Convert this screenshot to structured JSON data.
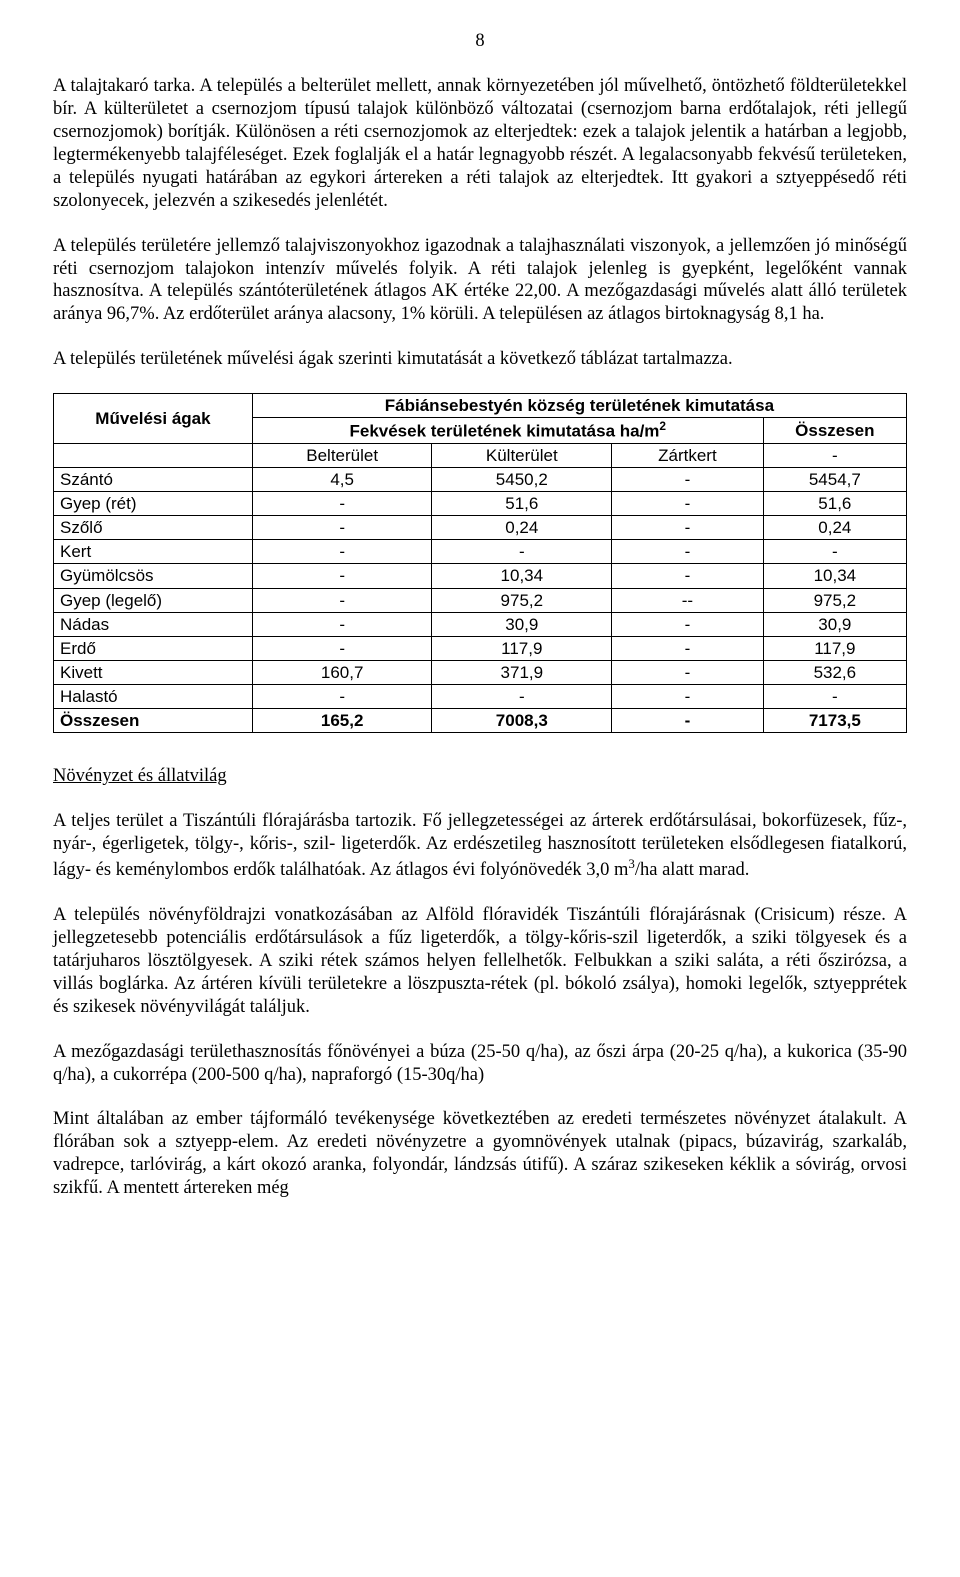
{
  "page_number": "8",
  "para1": "A talajtakaró tarka. A település a belterület mellett, annak környezetében jól művelhető, öntözhető földterületekkel bír. A külterületet a csernozjom típusú talajok különböző változatai (csernozjom barna erdőtalajok, réti jellegű csernozjomok) borítják. Különösen a réti csernozjomok az elterjedtek: ezek a talajok jelentik a határban a legjobb, legtermékenyebb talajféleséget. Ezek foglalják el a határ legnagyobb részét. A legalacsonyabb fekvésű területeken, a település nyugati határában az egykori ártereken a réti talajok az elterjedtek. Itt gyakori a sztyeppésedő réti szolonyecek, jelezvén a szikesedés jelenlétét.",
  "para2": "A település területére jellemző talajviszonyokhoz igazodnak a talajhasználati viszonyok, a jellemzően jó minőségű réti csernozjom talajokon intenzív művelés folyik. A réti talajok jelenleg is gyepként, legelőként vannak hasznosítva. A település szántóterületének átlagos AK értéke 22,00. A mezőgazdasági művelés alatt álló területek aránya 96,7%. Az erdőterület aránya alacsony, 1% körüli. A településen az átlagos birtoknagyság 8,1 ha.",
  "para3": "A település területének művelési ágak szerinti kimutatását a következő táblázat tartalmazza.",
  "table": {
    "title": "Fábiánsebestyén község területének kimutatása",
    "col_group": "Fekvések területének kimutatása ha/m",
    "col_group_sup": "2",
    "col0": "Művelési ágak",
    "col_total": "Összesen",
    "sub1": "Belterület",
    "sub2": "Külterület",
    "sub3": "Zártkert",
    "sub4": "-",
    "rows": [
      {
        "label": "Szántó",
        "c1": "4,5",
        "c2": "5450,2",
        "c3": "-",
        "c4": "5454,7"
      },
      {
        "label": "Gyep (rét)",
        "c1": "-",
        "c2": "51,6",
        "c3": "-",
        "c4": "51,6"
      },
      {
        "label": "Szőlő",
        "c1": "-",
        "c2": "0,24",
        "c3": "-",
        "c4": "0,24"
      },
      {
        "label": "Kert",
        "c1": "-",
        "c2": "-",
        "c3": "-",
        "c4": "-"
      },
      {
        "label": "Gyümölcsös",
        "c1": "-",
        "c2": "10,34",
        "c3": "-",
        "c4": "10,34"
      },
      {
        "label": "Gyep (legelő)",
        "c1": "-",
        "c2": "975,2",
        "c3": "--",
        "c4": "975,2"
      },
      {
        "label": "Nádas",
        "c1": "-",
        "c2": "30,9",
        "c3": "-",
        "c4": "30,9"
      },
      {
        "label": "Erdő",
        "c1": "-",
        "c2": "117,9",
        "c3": "-",
        "c4": "117,9"
      },
      {
        "label": "Kivett",
        "c1": "160,7",
        "c2": "371,9",
        "c3": "-",
        "c4": "532,6"
      },
      {
        "label": "Halastó",
        "c1": "-",
        "c2": "-",
        "c3": "-",
        "c4": "-"
      }
    ],
    "total": {
      "label": "Összesen",
      "c1": "165,2",
      "c2": "7008,3",
      "c3": "-",
      "c4": "7173,5"
    }
  },
  "subtitle": "Növényzet és állatvilág",
  "para4_a": "A teljes terület a Tiszántúli flórajárásba tartozik. Fő jellegzetességei az árterek erdőtársulásai, bokorfüzesek, fűz-, nyár-, égerligetek, tölgy-, kőris-, szil- ligeterdők. Az erdészetileg hasznosított területeken elsődlegesen fiatalkorú, lágy- és keménylombos erdők találhatóak. Az átlagos évi folyónövedék 3,0 m",
  "para4_sup": "3",
  "para4_b": "/ha alatt marad.",
  "para5": "A település növényföldrajzi vonatkozásában az Alföld flóravidék Tiszántúli flórajárásnak (Crisicum) része. A jellegzetesebb potenciális erdőtársulások a fűz ligeterdők, a tölgy-kőris-szil ligeterdők, a sziki tölgyesek és a tatárjuharos lösztölgyesek. A sziki rétek számos helyen fellelhetők. Felbukkan a sziki saláta, a réti őszirózsa, a villás boglárka. Az ártéren kívüli területekre a löszpuszta-rétek (pl. bókoló zsálya), homoki legelők, sztyepprétek és szikesek növényvilágát találjuk.",
  "para6": "A mezőgazdasági területhasznosítás főnövényei a búza (25-50 q/ha), az őszi árpa (20-25 q/ha), a kukorica (35-90 q/ha), a cukorrépa (200-500 q/ha), napraforgó (15-30q/ha)",
  "para7": "Mint általában az ember tájformáló tevékenysége következtében az eredeti természetes növényzet átalakult. A flórában sok a sztyepp-elem. Az eredeti növényzetre a gyomnövények utalnak (pipacs, búzavirág, szarkaláb, vadrepce, tarlóvirág, a kárt okozó aranka, folyondár, lándzsás útifű). A száraz szikeseken kéklik a sóvirág, orvosi szikfű. A mentett ártereken még"
}
